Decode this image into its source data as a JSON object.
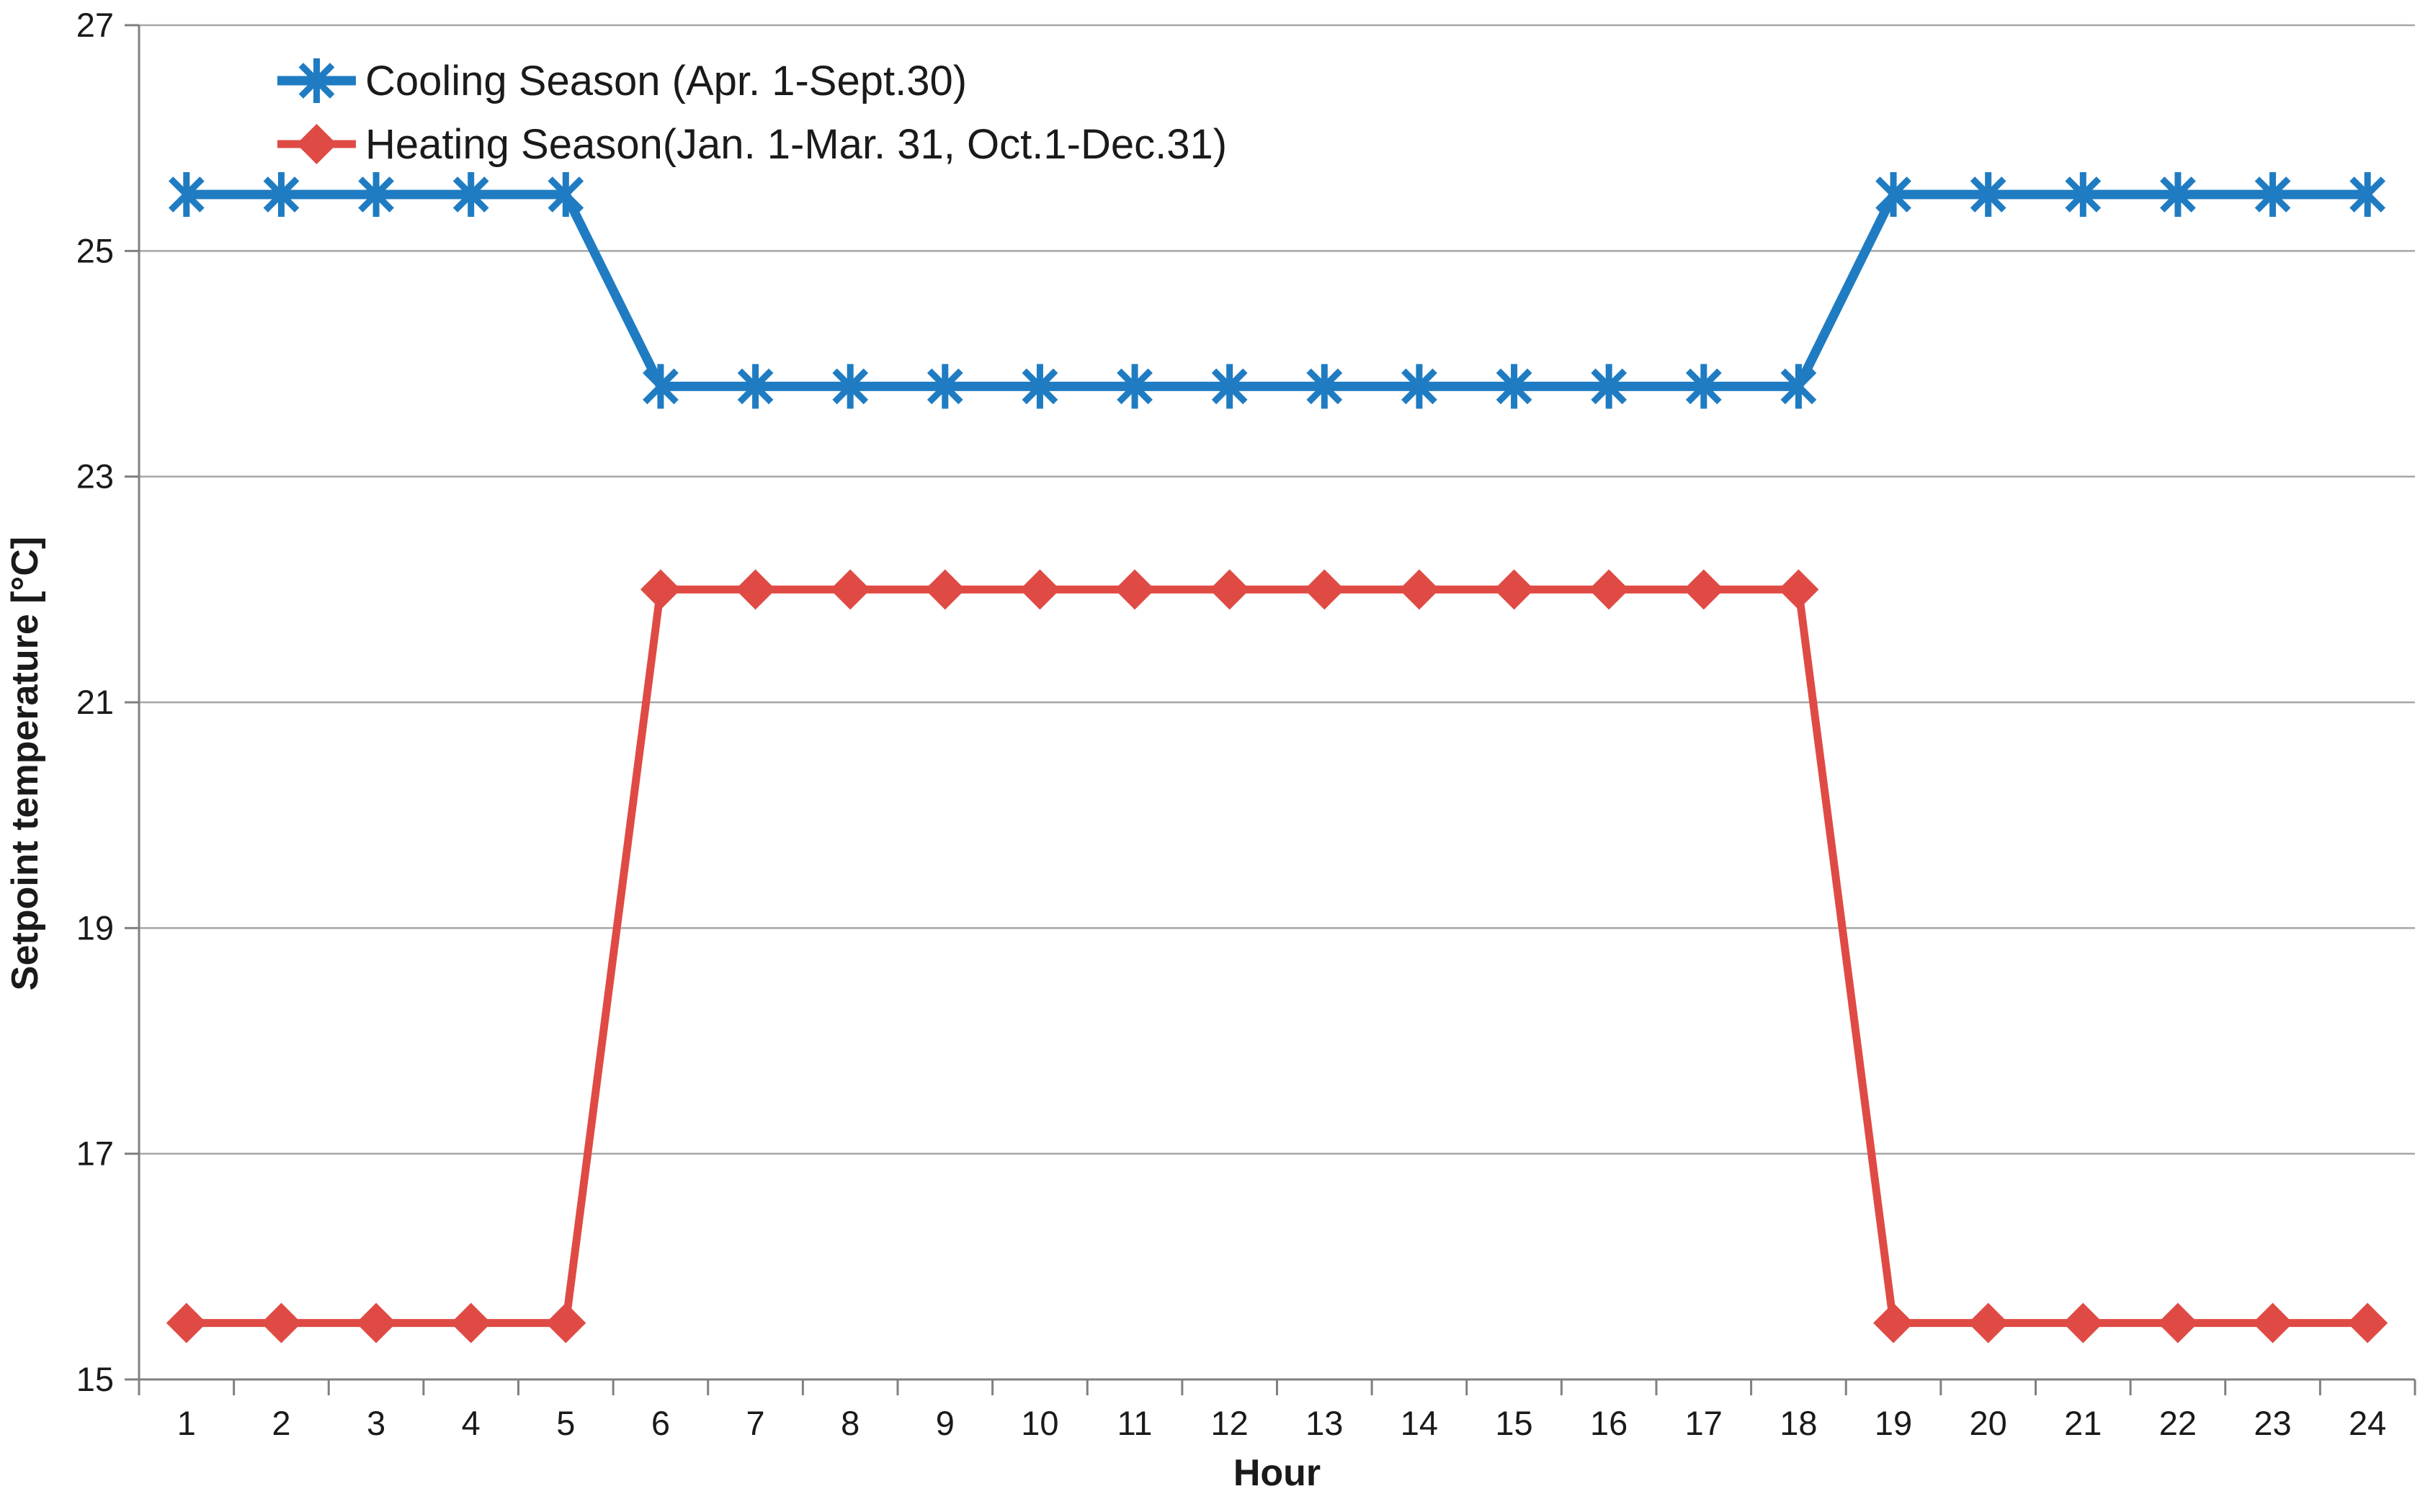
{
  "page": {
    "background": "#ffffff"
  },
  "chart_data": {
    "type": "line",
    "title": "",
    "xlabel": "Hour",
    "ylabel": "Setpoint temperature [°C]",
    "x": [
      1,
      2,
      3,
      4,
      5,
      6,
      7,
      8,
      9,
      10,
      11,
      12,
      13,
      14,
      15,
      16,
      17,
      18,
      19,
      20,
      21,
      22,
      23,
      24
    ],
    "ylim": [
      15,
      27
    ],
    "yticks": [
      15,
      17,
      19,
      21,
      23,
      25,
      27
    ],
    "grid": "horizontal",
    "legend_position": "top-left-inside",
    "gridline_color": "#a6a6a6",
    "axis_color": "#808080",
    "text_color": "#1a1a1a",
    "series": [
      {
        "name": "Cooling Season (Apr. 1-Sept.30)",
        "color": "#1f7cc2",
        "marker": "asterisk",
        "values": [
          25.5,
          25.5,
          25.5,
          25.5,
          25.5,
          23.8,
          23.8,
          23.8,
          23.8,
          23.8,
          23.8,
          23.8,
          23.8,
          23.8,
          23.8,
          23.8,
          23.8,
          23.8,
          25.5,
          25.5,
          25.5,
          25.5,
          25.5,
          25.5
        ]
      },
      {
        "name": "Heating Season(Jan. 1-Mar. 31, Oct.1-Dec.31)",
        "color": "#df4b44",
        "marker": "diamond",
        "values": [
          15.5,
          15.5,
          15.5,
          15.5,
          15.5,
          22,
          22,
          22,
          22,
          22,
          22,
          22,
          22,
          22,
          22,
          22,
          22,
          22,
          15.5,
          15.5,
          15.5,
          15.5,
          15.5,
          15.5
        ]
      }
    ]
  }
}
